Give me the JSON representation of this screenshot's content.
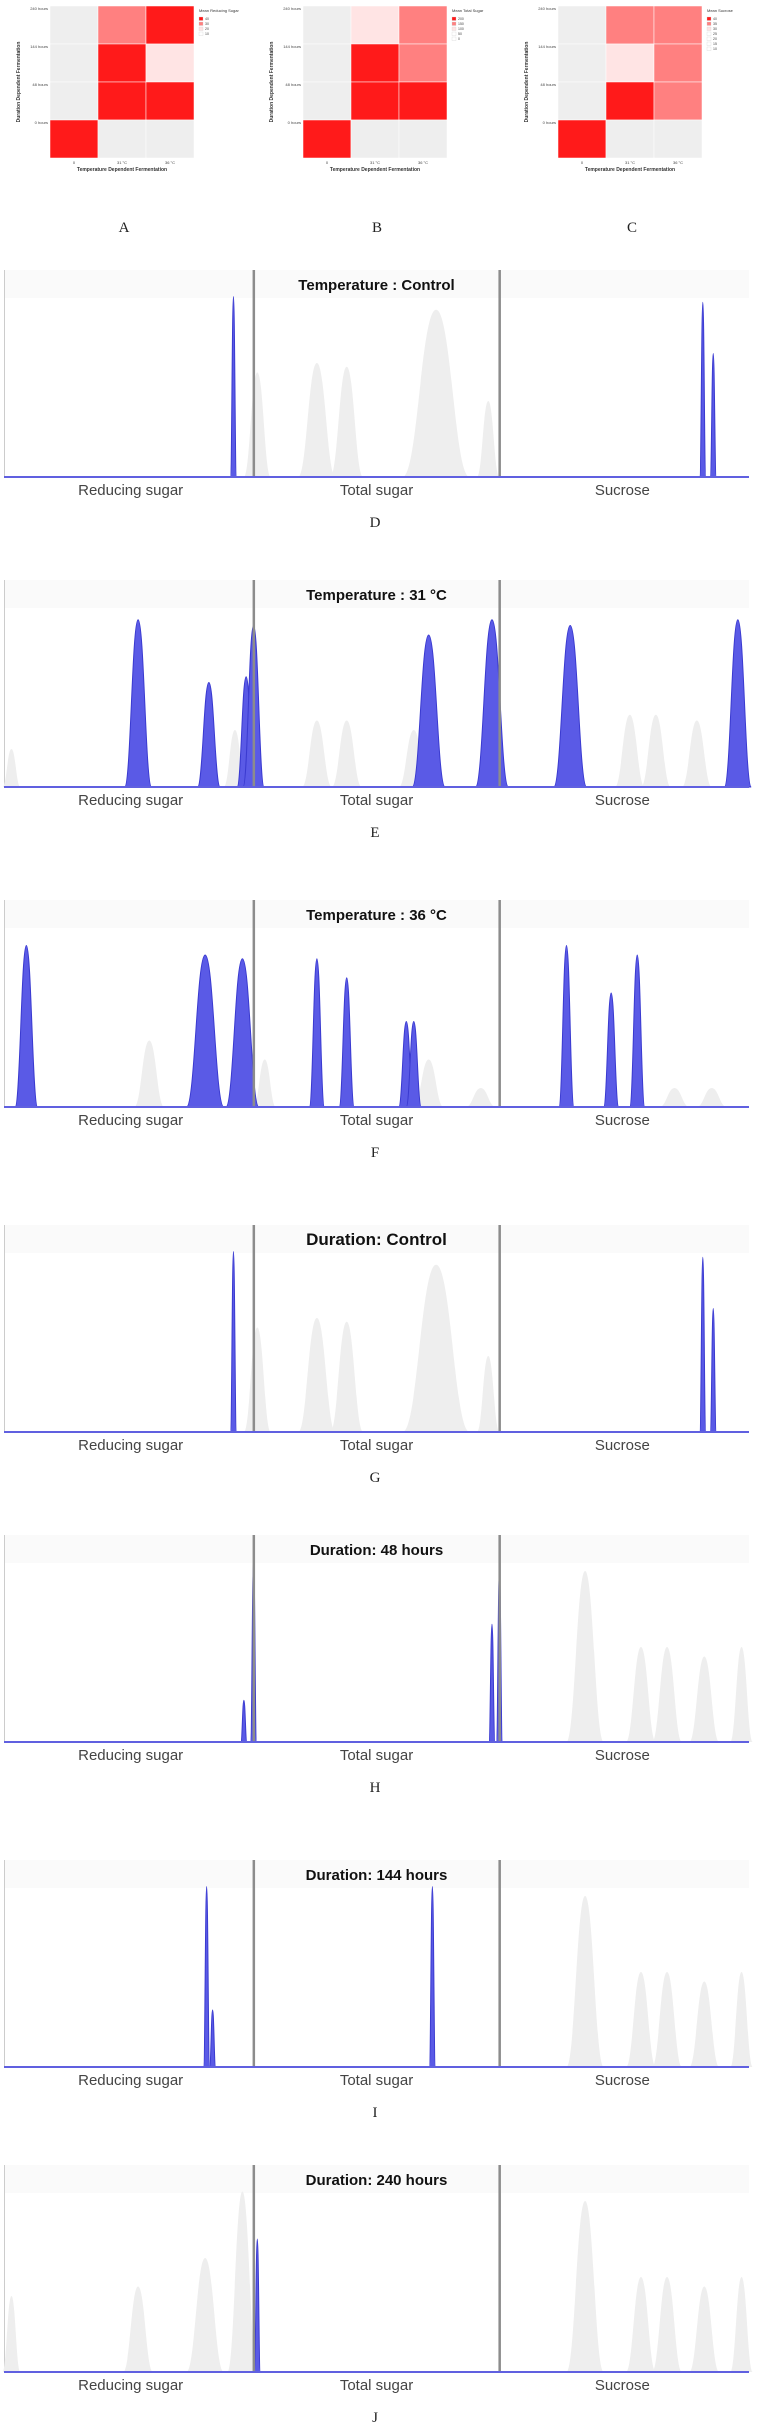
{
  "colors": {
    "peak_blue": "#5a5ae6",
    "peak_blue_stroke": "#3a3ad0",
    "ghost_grey": "#eeeeee",
    "divider_grey": "#8c8c8c",
    "heatmap_light": "#ffe4e4",
    "heatmap_mid": "#ff8080",
    "heatmap_dark": "#ff1a1a",
    "heatmap_empty": "#eeeeee"
  },
  "heatmaps": [
    {
      "letter": "A",
      "ylabel": "Duration Dependent Fermentation",
      "xlabel": "Temperature Dependent Fermentation",
      "xticks": [
        "0",
        "31 °C",
        "36 °C"
      ],
      "yticks": [
        "240 hours",
        "144 hours",
        "48 hours",
        "0 hours"
      ],
      "legend_title": "Mean Reducing Sugar",
      "legend_items": [
        "40",
        "30",
        "20",
        "10"
      ],
      "cells": [
        [
          "empty",
          "mid",
          "dark"
        ],
        [
          "empty",
          "dark",
          "light"
        ],
        [
          "empty",
          "dark",
          "dark"
        ],
        [
          "dark",
          "empty",
          "empty"
        ]
      ]
    },
    {
      "letter": "B",
      "ylabel": "Duration Dependent Fermentation",
      "xlabel": "Temperature Dependent Fermentation",
      "xticks": [
        "0",
        "31 °C",
        "36 °C"
      ],
      "yticks": [
        "240 hours",
        "144 hours",
        "48 hours",
        "0 hours"
      ],
      "legend_title": "Mean Total Sugar",
      "legend_items": [
        "200",
        "150",
        "100",
        "50",
        "0"
      ],
      "cells": [
        [
          "empty",
          "light",
          "mid"
        ],
        [
          "empty",
          "dark",
          "mid"
        ],
        [
          "empty",
          "dark",
          "dark"
        ],
        [
          "dark",
          "empty",
          "empty"
        ]
      ]
    },
    {
      "letter": "C",
      "ylabel": "Duration Dependent Fermentation",
      "xlabel": "Temperature Dependent Fermentation",
      "xticks": [
        "0",
        "31 °C",
        "36 °C"
      ],
      "yticks": [
        "240 hours",
        "144 hours",
        "48 hours",
        "0 hours"
      ],
      "legend_title": "Mean Sucrose",
      "legend_items": [
        "40",
        "35",
        "30",
        "25",
        "20",
        "15",
        "10"
      ],
      "cells": [
        [
          "empty",
          "mid",
          "mid"
        ],
        [
          "empty",
          "light",
          "mid"
        ],
        [
          "empty",
          "dark",
          "mid"
        ],
        [
          "dark",
          "empty",
          "empty"
        ]
      ]
    }
  ],
  "chart_data": [
    {
      "type": "line",
      "letter": "D",
      "title": "Temperature : Control",
      "sections": [
        "Reducing sugar",
        "Total sugar",
        "Sucrose"
      ],
      "dividers": [
        0.335,
        0.665
      ],
      "peaks_blue": [
        [
          0.308,
          0.95,
          0.004
        ],
        [
          0.938,
          0.92,
          0.004
        ],
        [
          0.952,
          0.65,
          0.004
        ]
      ],
      "peaks_grey": [
        [
          0.34,
          0.55,
          0.018
        ],
        [
          0.42,
          0.6,
          0.025
        ],
        [
          0.46,
          0.58,
          0.022
        ],
        [
          0.58,
          0.88,
          0.045
        ],
        [
          0.65,
          0.4,
          0.015
        ]
      ]
    },
    {
      "type": "line",
      "letter": "E",
      "title": "Temperature : 31 °C",
      "sections": [
        "Reducing sugar",
        "Total sugar",
        "Sucrose"
      ],
      "dividers": [
        0.335,
        0.665
      ],
      "peaks_blue": [
        [
          0.18,
          0.88,
          0.018
        ],
        [
          0.275,
          0.55,
          0.015
        ],
        [
          0.325,
          0.58,
          0.012
        ],
        [
          0.335,
          0.85,
          0.014
        ],
        [
          0.57,
          0.8,
          0.022
        ],
        [
          0.655,
          0.88,
          0.022
        ],
        [
          0.76,
          0.85,
          0.022
        ],
        [
          0.985,
          0.88,
          0.018
        ]
      ],
      "peaks_grey": [
        [
          0.01,
          0.2,
          0.012
        ],
        [
          0.31,
          0.3,
          0.015
        ],
        [
          0.42,
          0.35,
          0.02
        ],
        [
          0.46,
          0.35,
          0.02
        ],
        [
          0.55,
          0.3,
          0.02
        ],
        [
          0.84,
          0.38,
          0.02
        ],
        [
          0.875,
          0.38,
          0.02
        ],
        [
          0.93,
          0.35,
          0.02
        ]
      ]
    },
    {
      "type": "line",
      "letter": "F",
      "title": "Temperature : 36 °C",
      "sections": [
        "Reducing sugar",
        "Total sugar",
        "Sucrose"
      ],
      "dividers": [
        0.335,
        0.665
      ],
      "peaks_blue": [
        [
          0.03,
          0.85,
          0.015
        ],
        [
          0.27,
          0.8,
          0.025
        ],
        [
          0.32,
          0.78,
          0.022
        ],
        [
          0.42,
          0.78,
          0.01
        ],
        [
          0.46,
          0.68,
          0.01
        ],
        [
          0.54,
          0.45,
          0.01
        ],
        [
          0.55,
          0.45,
          0.01
        ],
        [
          0.755,
          0.85,
          0.01
        ],
        [
          0.815,
          0.6,
          0.01
        ],
        [
          0.85,
          0.8,
          0.01
        ]
      ],
      "peaks_grey": [
        [
          0.195,
          0.35,
          0.02
        ],
        [
          0.35,
          0.25,
          0.015
        ],
        [
          0.57,
          0.25,
          0.02
        ],
        [
          0.64,
          0.1,
          0.02
        ],
        [
          0.9,
          0.1,
          0.02
        ],
        [
          0.95,
          0.1,
          0.02
        ]
      ]
    },
    {
      "type": "line",
      "letter": "G",
      "title": "Duration: Control",
      "sections": [
        "Reducing sugar",
        "Total sugar",
        "Sucrose"
      ],
      "dividers": [
        0.335,
        0.665
      ],
      "peaks_blue": [
        [
          0.308,
          0.95,
          0.004
        ],
        [
          0.938,
          0.92,
          0.004
        ],
        [
          0.952,
          0.65,
          0.004
        ]
      ],
      "peaks_grey": [
        [
          0.34,
          0.55,
          0.018
        ],
        [
          0.42,
          0.6,
          0.025
        ],
        [
          0.46,
          0.58,
          0.022
        ],
        [
          0.58,
          0.88,
          0.045
        ],
        [
          0.65,
          0.4,
          0.015
        ]
      ]
    },
    {
      "type": "line",
      "letter": "H",
      "title": "Duration: 48 hours",
      "sections": [
        "Reducing sugar",
        "Total sugar",
        "Sucrose"
      ],
      "dividers": [
        0.335,
        0.665
      ],
      "peaks_blue": [
        [
          0.322,
          0.22,
          0.004
        ],
        [
          0.335,
          0.95,
          0.004
        ],
        [
          0.655,
          0.62,
          0.004
        ],
        [
          0.665,
          0.9,
          0.004
        ]
      ],
      "peaks_grey": [
        [
          0.78,
          0.9,
          0.025
        ],
        [
          0.855,
          0.5,
          0.02
        ],
        [
          0.89,
          0.5,
          0.02
        ],
        [
          0.94,
          0.45,
          0.02
        ],
        [
          0.99,
          0.5,
          0.015
        ]
      ]
    },
    {
      "type": "line",
      "letter": "I",
      "title": "Duration: 144 hours",
      "sections": [
        "Reducing sugar",
        "Total sugar",
        "Sucrose"
      ],
      "dividers": [
        0.335,
        0.665
      ],
      "peaks_blue": [
        [
          0.272,
          0.95,
          0.004
        ],
        [
          0.28,
          0.3,
          0.004
        ],
        [
          0.575,
          0.95,
          0.004
        ]
      ],
      "peaks_grey": [
        [
          0.78,
          0.9,
          0.025
        ],
        [
          0.855,
          0.5,
          0.02
        ],
        [
          0.89,
          0.5,
          0.02
        ],
        [
          0.94,
          0.45,
          0.02
        ],
        [
          0.99,
          0.5,
          0.015
        ]
      ]
    },
    {
      "type": "line",
      "letter": "J",
      "title": "Duration: 240 hours",
      "sections": [
        "Reducing sugar",
        "Total sugar",
        "Sucrose"
      ],
      "dividers": [
        0.335,
        0.665
      ],
      "peaks_blue": [
        [
          0.34,
          0.7,
          0.004
        ]
      ],
      "peaks_grey": [
        [
          0.01,
          0.4,
          0.012
        ],
        [
          0.18,
          0.45,
          0.02
        ],
        [
          0.27,
          0.6,
          0.025
        ],
        [
          0.32,
          0.95,
          0.02
        ],
        [
          0.78,
          0.9,
          0.025
        ],
        [
          0.855,
          0.5,
          0.02
        ],
        [
          0.89,
          0.5,
          0.02
        ],
        [
          0.94,
          0.45,
          0.02
        ],
        [
          0.99,
          0.5,
          0.015
        ]
      ]
    }
  ]
}
